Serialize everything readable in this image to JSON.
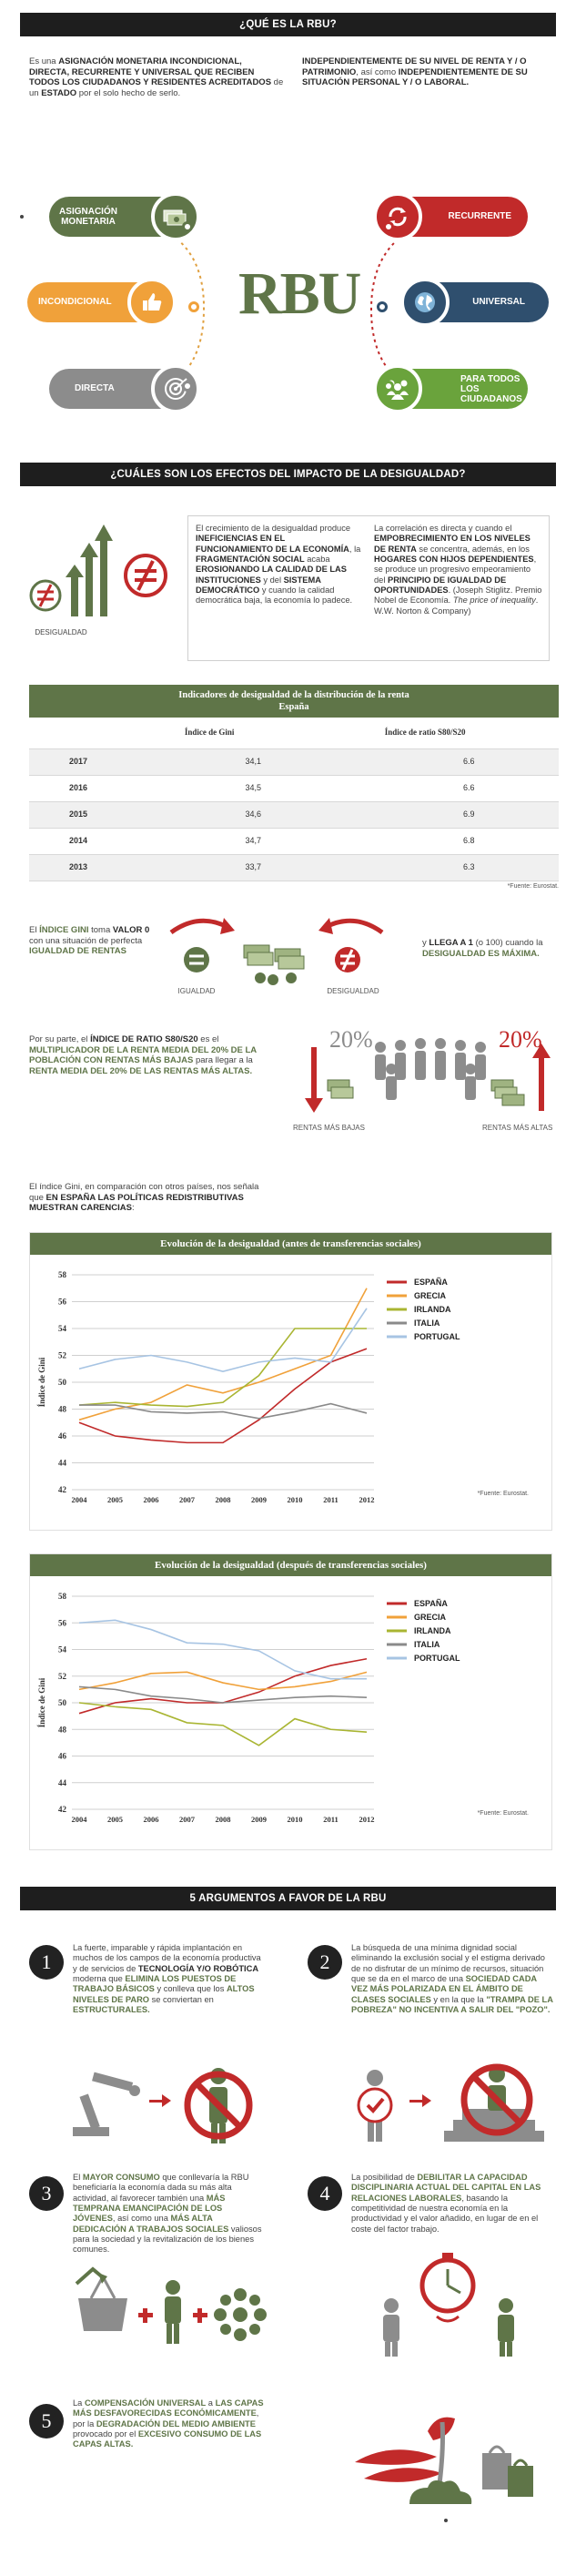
{
  "sec1": {
    "title": "¿QUÉ ES LA RBU?",
    "left_pre": "Es una ",
    "left_bold": "ASIGNACIÓN MONETARIA INCONDICIONAL, DIRECTA, RECURRENTE Y UNIVERSAL QUE RECIBEN TODOS LOS CIUDADANOS Y RESIDENTES ACREDITADOS",
    "left_mid": " de un ",
    "left_estado": "ESTADO",
    "left_post": " por el solo hecho de serlo.",
    "right_bold1": "INDEPENDIENTEMENTE DE SU NIVEL DE RENTA Y / O PATRIMONIO",
    "right_mid": ", así como ",
    "right_bold2": "INDEPENDIENTEMENTE DE SU SITUACIÓN PERSONAL Y / O LABORAL.",
    "center": "RBU",
    "items": {
      "asignacion": "ASIGNACIÓN MONETARIA",
      "incondicional": "INCONDICIONAL",
      "directa": "DIRECTA",
      "recurrente": "RECURRENTE",
      "universal": "UNIVERSAL",
      "para_todos": "PARA TODOS LOS CIUDADANOS"
    }
  },
  "sec2": {
    "title": "¿CUÁLES SON LOS EFECTOS DEL IMPACTO DE LA DESIGUALDAD?",
    "icon_label": "DESIGUALDAD",
    "left": [
      {
        "t": "El crecimiento de la desigualdad produce ",
        "b": false
      },
      {
        "t": "INEFICIENCIAS EN EL FUNCIONAMIENTO DE LA ECONOMÍA",
        "b": true
      },
      {
        "t": ", la ",
        "b": false
      },
      {
        "t": "FRAGMENTACIÓN SOCIAL",
        "b": true
      },
      {
        "t": " acaba ",
        "b": false
      },
      {
        "t": "EROSIONANDO LA CALIDAD DE LAS INSTITUCIONES",
        "b": true
      },
      {
        "t": " y del ",
        "b": false
      },
      {
        "t": "SISTEMA DEMOCRÁTICO",
        "b": true
      },
      {
        "t": " y cuando la calidad democrática baja, la economía lo padece.",
        "b": false
      }
    ],
    "right": [
      {
        "t": "La correlación es directa y cuando el ",
        "b": false
      },
      {
        "t": "EMPOBRECIMIENTO EN LOS NIVELES DE RENTA",
        "b": true
      },
      {
        "t": " se concentra, además, en los ",
        "b": false
      },
      {
        "t": "HOGARES CON HIJOS DEPENDIENTES",
        "b": true
      },
      {
        "t": ", se produce un progresivo empeoramiento del ",
        "b": false
      },
      {
        "t": "PRINCIPIO DE IGUALDAD DE OPORTUNIDADES",
        "b": true
      },
      {
        "t": ". (Joseph Stiglitz. Premio Nobel de Economía. ",
        "b": false
      },
      {
        "t": "The price of inequality",
        "b": false,
        "i": true
      },
      {
        "t": ". W.W. Norton & Company)",
        "b": false
      }
    ]
  },
  "table": {
    "title1": "Indicadores de desigualdad de la distribución de la renta",
    "title2": "España",
    "col1": "Índice de Gini",
    "col2": "Índice de ratio S80/S20",
    "rows": [
      {
        "year": "2017",
        "gini": "34,1",
        "ratio": "6.6"
      },
      {
        "year": "2016",
        "gini": "34,5",
        "ratio": "6.6"
      },
      {
        "year": "2015",
        "gini": "34,6",
        "ratio": "6.9"
      },
      {
        "year": "2014",
        "gini": "34,7",
        "ratio": "6.8"
      },
      {
        "year": "2013",
        "gini": "33,7",
        "ratio": "6.3"
      }
    ],
    "source": "*Fuente: Eurostat."
  },
  "gini_expl": {
    "left": [
      {
        "t": "El ",
        "s": "n"
      },
      {
        "t": "ÍNDICE GINI",
        "s": "g"
      },
      {
        "t": " toma ",
        "s": "n"
      },
      {
        "t": "VALOR 0",
        "s": "k"
      },
      {
        "t": " con una situación de perfecta ",
        "s": "n"
      },
      {
        "t": "IGUALDAD DE RENTAS",
        "s": "g"
      }
    ],
    "right": [
      {
        "t": "y ",
        "s": "n"
      },
      {
        "t": "LLEGA A 1",
        "s": "k"
      },
      {
        "t": " (o 100) cuando la ",
        "s": "n"
      },
      {
        "t": "DESIGUALDAD ES MÁXIMA.",
        "s": "g"
      }
    ],
    "igualdad": "IGUALDAD",
    "desigualdad": "DESIGUALDAD"
  },
  "ratio_expl": {
    "text": [
      {
        "t": "Por su parte, el ",
        "s": "n"
      },
      {
        "t": "ÍNDICE DE RATIO S80/S20",
        "s": "k"
      },
      {
        "t": " es el ",
        "s": "n"
      },
      {
        "t": "MULTIPLICADOR DE LA RENTA MEDIA DEL 20% DE LA POBLACIÓN CON RENTAS MÁS BAJAS",
        "s": "g"
      },
      {
        "t": " para llegar a la ",
        "s": "n"
      },
      {
        "t": "RENTA MEDIA DEL 20% DE LAS RENTAS MÁS ALTAS.",
        "s": "g"
      }
    ],
    "pct_low": "20%",
    "pct_high": "20%",
    "low_label": "RENTAS MÁS BAJAS",
    "high_label": "RENTAS MÁS ALTAS"
  },
  "intro_charts": {
    "pre": "El índice Gini, en comparación con otros países, nos señala que ",
    "bold": "EN ESPAÑA LAS POLÍTICAS REDISTRIBUTIVAS MUESTRAN CARENCIAS",
    "post": ":"
  },
  "colors": {
    "green": "#5f7548",
    "red": "#c12a2a",
    "orange": "#f0a13a",
    "olive": "#a9b532",
    "grey": "#8a8a8a",
    "blue": "#a7c4e3",
    "dark_blue": "#2f4f6e",
    "dark": "#1e1e1e"
  },
  "chart_data": [
    {
      "type": "line",
      "title": "Evolución de la desigualdad (antes de transferencias sociales)",
      "ylabel": "Índice de Gini",
      "ylim": [
        42,
        58
      ],
      "yticks": [
        42,
        44,
        46,
        48,
        50,
        52,
        54,
        56,
        58
      ],
      "x": [
        "2004",
        "2005",
        "2006",
        "2007",
        "2008",
        "2009",
        "2010",
        "2011",
        "2012"
      ],
      "source": "*Fuente: Eurostat.",
      "legend_position": "right",
      "series": [
        {
          "name": "ESPAÑA",
          "color": "#c12a2a",
          "values": [
            47,
            46,
            45.7,
            45.5,
            45.5,
            47.2,
            49.5,
            51.5,
            52.5
          ]
        },
        {
          "name": "GRECIA",
          "color": "#f0a13a",
          "values": [
            47.2,
            48,
            48.5,
            49.8,
            49.2,
            50,
            51,
            52,
            57
          ]
        },
        {
          "name": "IRLANDA",
          "color": "#a9b532",
          "values": [
            48.3,
            48.5,
            48.3,
            48.2,
            48.5,
            50.5,
            54,
            54,
            54
          ]
        },
        {
          "name": "ITALIA",
          "color": "#8a8a8a",
          "values": [
            48.3,
            48.3,
            47.8,
            47.7,
            47.8,
            47.3,
            47.8,
            48.4,
            47.7
          ]
        },
        {
          "name": "PORTUGAL",
          "color": "#a7c4e3",
          "values": [
            51,
            51.7,
            52,
            51.5,
            50.8,
            51.5,
            51.8,
            51.5,
            55.5
          ]
        }
      ]
    },
    {
      "type": "line",
      "title": "Evolución de la desigualdad (después de transferencias sociales)",
      "ylabel": "Índice de Gini",
      "ylim": [
        42,
        58
      ],
      "yticks": [
        42,
        44,
        46,
        48,
        50,
        52,
        54,
        56,
        58
      ],
      "x": [
        "2004",
        "2005",
        "2006",
        "2007",
        "2008",
        "2009",
        "2010",
        "2011",
        "2012"
      ],
      "source": "*Fuente: Eurostat.",
      "legend_position": "right",
      "series": [
        {
          "name": "ESPAÑA",
          "color": "#c12a2a",
          "values": [
            49.2,
            50,
            50.3,
            50,
            50,
            50.8,
            52,
            52.8,
            53.3
          ]
        },
        {
          "name": "GRECIA",
          "color": "#f0a13a",
          "values": [
            51,
            51.5,
            52.2,
            52.3,
            51.5,
            51,
            51.2,
            51.6,
            52.3
          ]
        },
        {
          "name": "IRLANDA",
          "color": "#a9b532",
          "values": [
            50,
            49.7,
            49.5,
            48.5,
            48.3,
            46.8,
            48.8,
            48,
            47.8
          ]
        },
        {
          "name": "ITALIA",
          "color": "#8a8a8a",
          "values": [
            51.2,
            51,
            50.5,
            50.3,
            50,
            50.2,
            50.4,
            50.5,
            50.4
          ]
        },
        {
          "name": "PORTUGAL",
          "color": "#a7c4e3",
          "values": [
            56,
            56.2,
            55.5,
            54.5,
            54.4,
            53.9,
            52.4,
            51.8,
            51.8
          ]
        }
      ]
    }
  ],
  "args": {
    "title": "5 ARGUMENTOS A FAVOR DE LA RBU",
    "items": [
      {
        "num": "1",
        "text": [
          {
            "t": "La fuerte, imparable y rápida implantación en muchos de los campos de la economía productiva y de servicios de ",
            "s": "n"
          },
          {
            "t": "TECNOLOGÍA Y/O ROBÓTICA",
            "s": "k"
          },
          {
            "t": " moderna que ",
            "s": "n"
          },
          {
            "t": "ELIMINA LOS PUESTOS DE TRABAJO BÁSICOS",
            "s": "g"
          },
          {
            "t": " y conlleva que los ",
            "s": "n"
          },
          {
            "t": "ALTOS NIVELES DE PARO",
            "s": "g"
          },
          {
            "t": " se conviertan en ",
            "s": "n"
          },
          {
            "t": "ESTRUCTURALES.",
            "s": "g"
          }
        ]
      },
      {
        "num": "2",
        "text": [
          {
            "t": "La búsqueda de una mínima dignidad social eliminando la exclusión social y el estigma derivado de no disfrutar de un mínimo de recursos, situación que se da en el marco de una ",
            "s": "n"
          },
          {
            "t": "SOCIEDAD CADA VEZ MÁS POLARIZADA EN EL ÁMBITO DE CLASES SOCIALES",
            "s": "g"
          },
          {
            "t": " y en la que la ",
            "s": "n"
          },
          {
            "t": "\"TRAMPA DE LA POBREZA\" NO INCENTIVA A SALIR DEL \"POZO\".",
            "s": "g"
          }
        ]
      },
      {
        "num": "3",
        "text": [
          {
            "t": "El ",
            "s": "n"
          },
          {
            "t": "MAYOR CONSUMO",
            "s": "g"
          },
          {
            "t": " que conllevaría la RBU beneficiaría la economía dada su más alta actividad, al favorecer también una ",
            "s": "n"
          },
          {
            "t": "MÁS TEMPRANA EMANCIPACIÓN DE LOS JÓVENES",
            "s": "g"
          },
          {
            "t": ", así como una ",
            "s": "n"
          },
          {
            "t": "MÁS ALTA DEDICACIÓN A TRABAJOS SOCIALES",
            "s": "g"
          },
          {
            "t": " valiosos para la sociedad y la revitalización de los bienes comunes.",
            "s": "n"
          }
        ]
      },
      {
        "num": "4",
        "text": [
          {
            "t": "La posibilidad de ",
            "s": "n"
          },
          {
            "t": "DEBILITAR LA CAPACIDAD DISCIPLINARIA ACTUAL DEL CAPITAL EN LAS RELACIONES LABORALES",
            "s": "g"
          },
          {
            "t": ", basando la competitividad de nuestra economía en la productividad y el valor añadido, en lugar de en el coste del factor trabajo.",
            "s": "n"
          }
        ]
      },
      {
        "num": "5",
        "text": [
          {
            "t": "La ",
            "s": "n"
          },
          {
            "t": "COMPENSACIÓN UNIVERSAL",
            "s": "g"
          },
          {
            "t": " a ",
            "s": "n"
          },
          {
            "t": "LAS CAPAS MÁS DESFAVORECIDAS ECONÓMICAMENTE",
            "s": "g"
          },
          {
            "t": ", por la ",
            "s": "n"
          },
          {
            "t": "DEGRADACIÓN DEL MEDIO AMBIENTE",
            "s": "g"
          },
          {
            "t": " provocado por el ",
            "s": "n"
          },
          {
            "t": "EXCESIVO CONSUMO DE LAS CAPAS ALTAS.",
            "s": "g"
          }
        ]
      }
    ]
  }
}
